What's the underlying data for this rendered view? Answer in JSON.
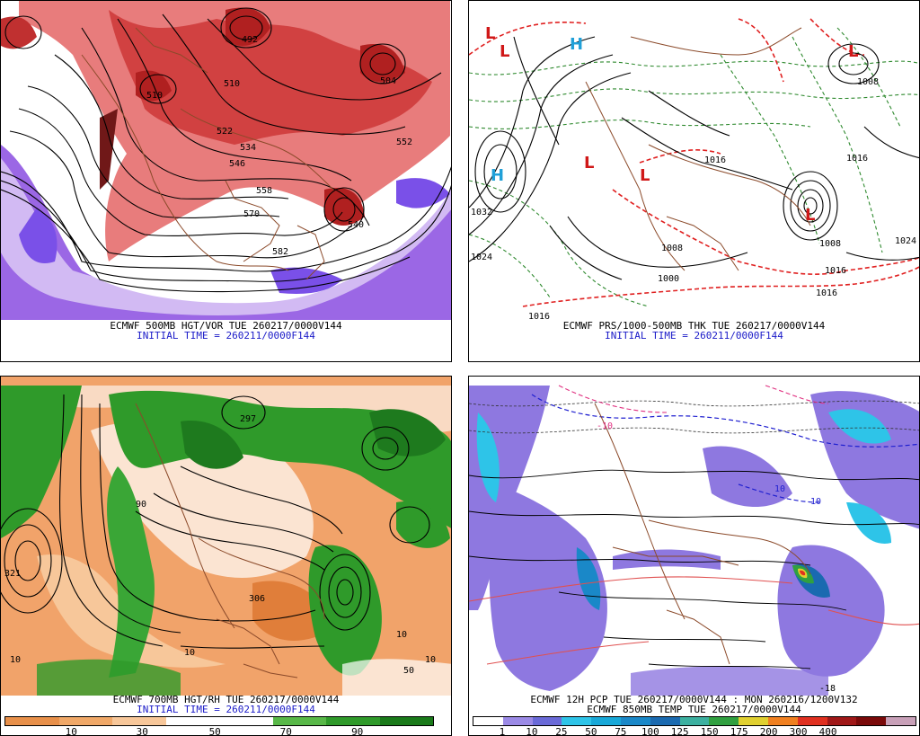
{
  "panels": [
    {
      "caption": "ECMWF 500MB HGT/VOR TUE 260217/0000V144",
      "init": "INITIAL TIME = 260211/0000F144",
      "labels": [
        "510",
        "510",
        "522",
        "534",
        "546",
        "558",
        "570",
        "582",
        "540",
        "552",
        "504",
        "492"
      ]
    },
    {
      "caption": "ECMWF PRS/1000-500MB THK TUE 260217/0000V144",
      "init": "INITIAL TIME = 260211/0000F144",
      "labels": [
        "1032",
        "1024",
        "1016",
        "1008",
        "1000",
        "1016",
        "1008",
        "1016",
        "1024",
        "1016",
        "1008",
        "1016"
      ]
    },
    {
      "caption": "ECMWF 700MB HGT/RH TUE 260217/0000V144",
      "init": "INITIAL TIME = 260211/0000F144",
      "labels": [
        "321",
        "306",
        "297",
        "10",
        "10",
        "50",
        "90",
        "10",
        "10"
      ],
      "colorbar": {
        "colors": [
          "#e8904a",
          "#f0a868",
          "#f7c79a",
          "#ffffff",
          "#ffffff",
          "#58b848",
          "#2f9a2a",
          "#1a7a1a"
        ],
        "ticks": [
          "10",
          "30",
          "50",
          "70",
          "90"
        ]
      }
    },
    {
      "caption": "ECMWF 12H PCP TUE 260217/0000V144 : MON 260216/1200V132",
      "caption2": "ECMWF 850MB TEMP TUE 260217/0000V144",
      "labels": [
        "-10",
        "10",
        "-18",
        "10"
      ],
      "colorbar": {
        "colors": [
          "#ffffff",
          "#9b8ae6",
          "#6a6ad8",
          "#2ec4e8",
          "#18a8d8",
          "#1a88c8",
          "#1a6ab0",
          "#3cb0a0",
          "#30a040",
          "#e0d030",
          "#f08020",
          "#e03020",
          "#a01818",
          "#7a0a0a",
          "#c8a0b8"
        ],
        "ticks": [
          "1",
          "10",
          "25",
          "50",
          "75",
          "100",
          "125",
          "150",
          "175",
          "200",
          "300",
          "400"
        ]
      }
    }
  ]
}
